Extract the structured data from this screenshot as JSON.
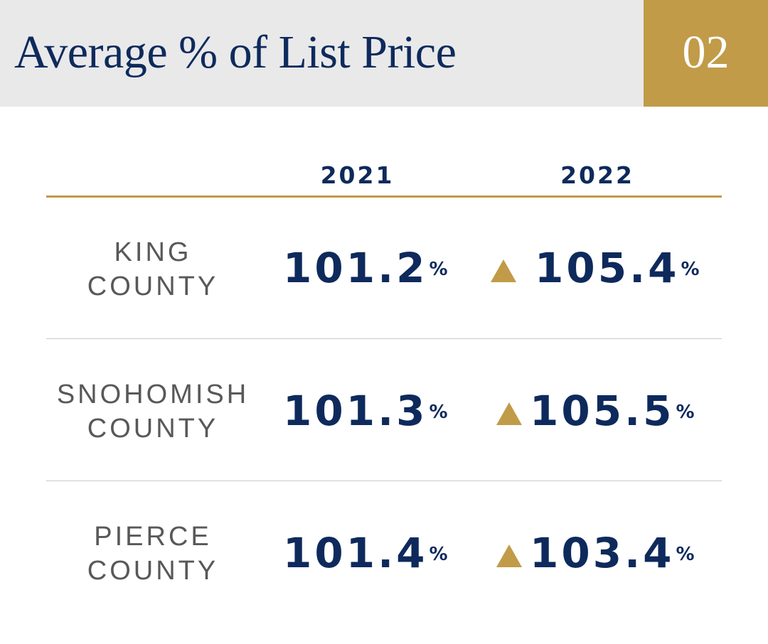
{
  "header": {
    "title": "Average % of List Price",
    "section_number": "02"
  },
  "columns": [
    "2021",
    "2022"
  ],
  "rows": [
    {
      "county_line1": "KING",
      "county_line2": "COUNTY",
      "value_2021": "101.2",
      "value_2022": "105.4",
      "change": "up"
    },
    {
      "county_line1": "SNOHOMISH",
      "county_line2": "COUNTY",
      "value_2021": "101.3",
      "value_2022": "105.5",
      "change": "up"
    },
    {
      "county_line1": "PIERCE",
      "county_line2": "COUNTY",
      "value_2021": "101.4",
      "value_2022": "103.4",
      "change": "up"
    }
  ],
  "percent_symbol": "%",
  "colors": {
    "navy": "#0e2a5c",
    "gold": "#c19b48",
    "header_gray": "#e9e9ea",
    "label_gray": "#585858",
    "divider_gray": "#c9c9c9"
  },
  "icons": {
    "change_indicator": "triangle-up-icon"
  }
}
